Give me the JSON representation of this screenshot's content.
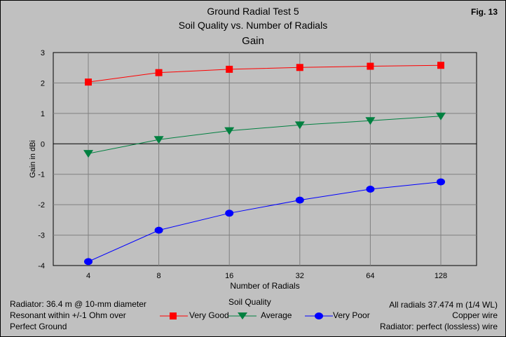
{
  "figure_label": "Fig. 13",
  "titles": [
    "Ground Radial Test 5",
    "Soil Quality vs. Number of Radials",
    "Gain"
  ],
  "left_notes": [
    "Radiator: 36.4 m @ 10-mm diameter",
    "Resonant within +/-1 Ohm over",
    "Perfect Ground"
  ],
  "right_notes": [
    "All radials 37.474 m (1/4 WL)",
    "Copper wire",
    "Radiator: perfect (lossless) wire"
  ],
  "colors": {
    "background": "#c0c0c0",
    "grid": "#808080",
    "very_good": "#ff0000",
    "average": "#008040",
    "very_poor": "#0000ff"
  },
  "chart_data": {
    "type": "line",
    "title": "Gain",
    "xlabel": "Number of Radials",
    "ylabel": "Gain in dBi",
    "legend_title": "Soil Quality",
    "legend_position": "bottom",
    "grid": true,
    "categories": [
      "4",
      "8",
      "16",
      "32",
      "64",
      "128"
    ],
    "ylim": [
      -4,
      3
    ],
    "yticks": [
      "3",
      "2",
      "1",
      "0",
      "-1",
      "-2",
      "-3",
      "-4"
    ],
    "series": [
      {
        "name": "Very Good",
        "marker": "square",
        "color": "#ff0000",
        "values": [
          2.03,
          2.34,
          2.45,
          2.51,
          2.55,
          2.58
        ]
      },
      {
        "name": "Average",
        "marker": "triangle-down",
        "color": "#008040",
        "values": [
          -0.32,
          0.14,
          0.43,
          0.62,
          0.76,
          0.91
        ]
      },
      {
        "name": "Very Poor",
        "marker": "circle",
        "color": "#0000ff",
        "values": [
          -3.87,
          -2.84,
          -2.28,
          -1.85,
          -1.49,
          -1.25
        ]
      }
    ]
  }
}
